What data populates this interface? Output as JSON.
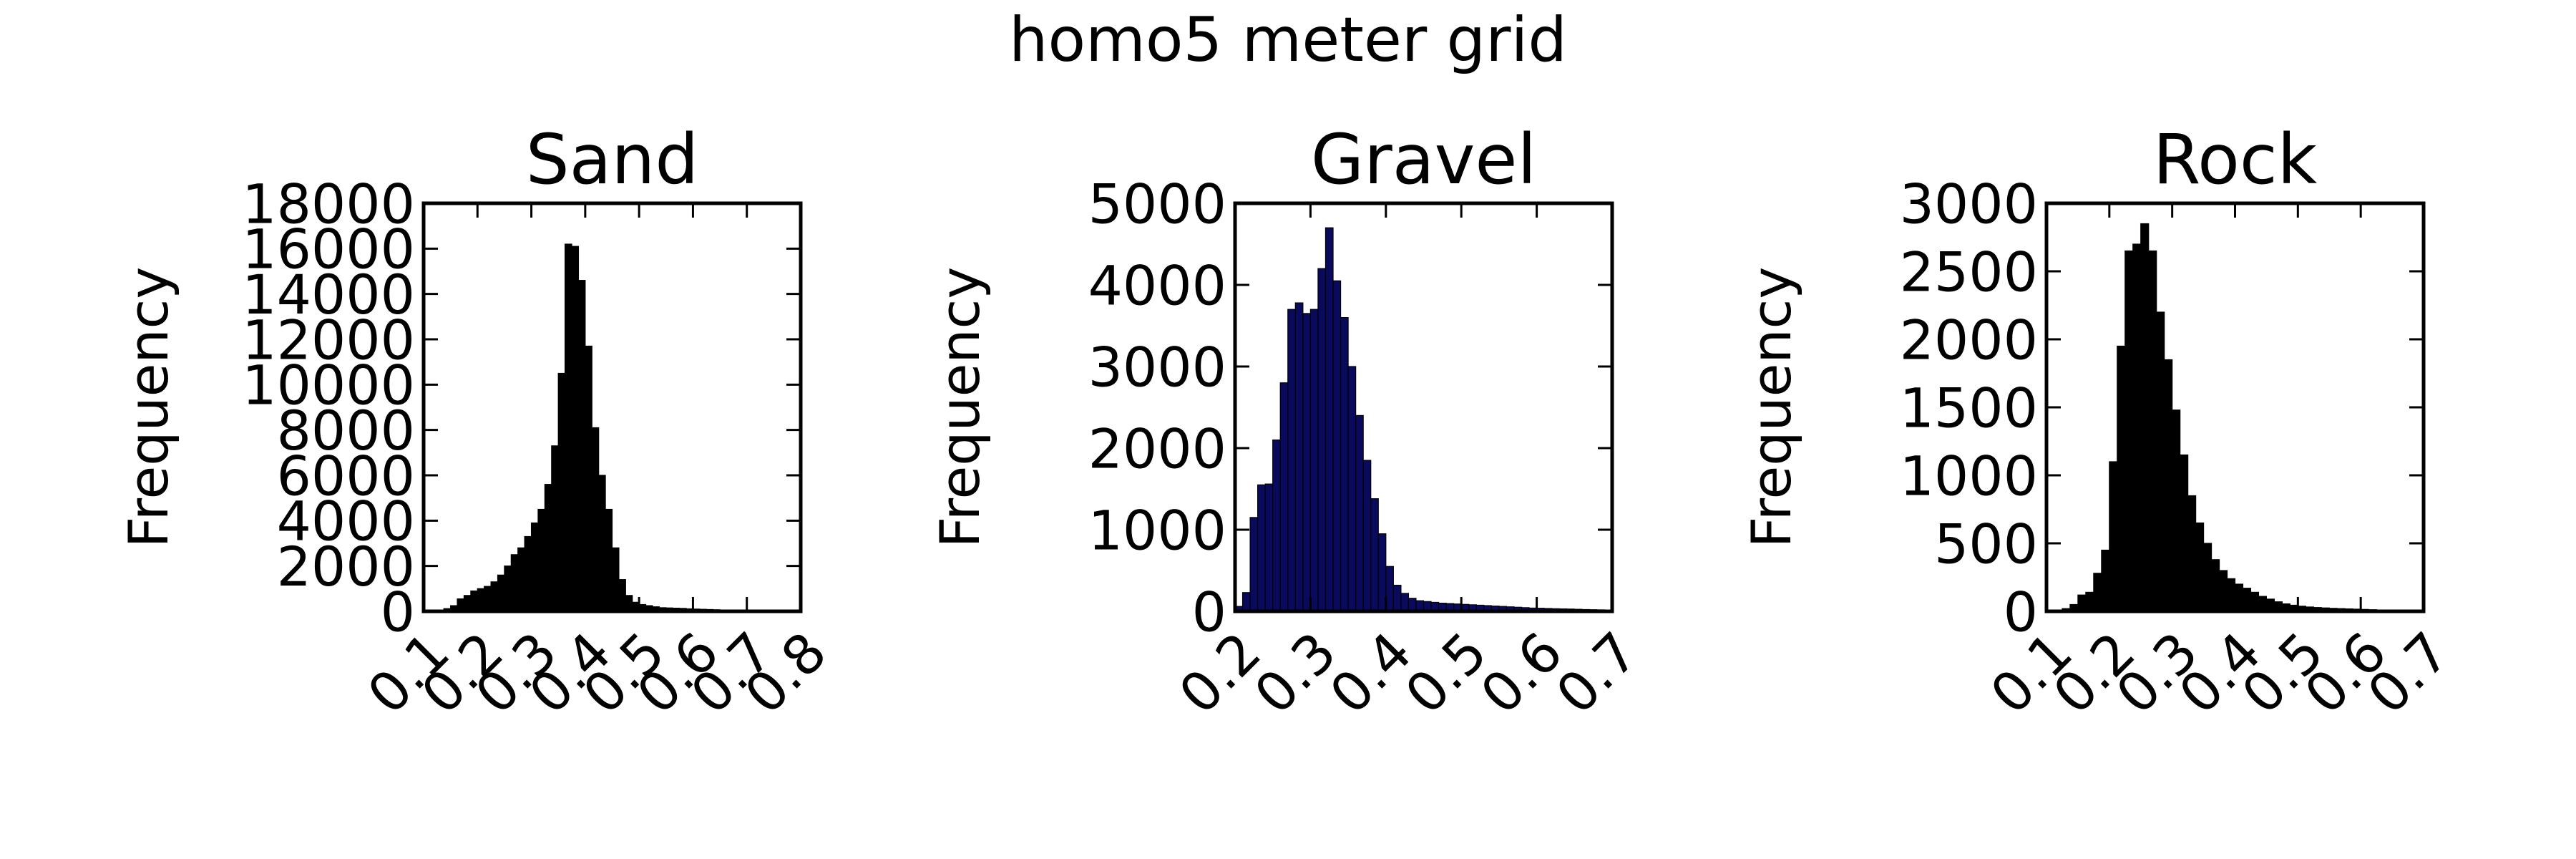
{
  "figure": {
    "suptitle": "homo5 meter grid"
  },
  "chart_data": [
    {
      "type": "bar",
      "title": "Sand",
      "xlabel": "",
      "ylabel": "Frequency",
      "xlim": [
        0.1,
        0.8
      ],
      "ylim": [
        0,
        18000
      ],
      "xticks": [
        0.1,
        0.2,
        0.3,
        0.4,
        0.5,
        0.6,
        0.7,
        0.8
      ],
      "xtick_labels": [
        "0.1",
        "0.2",
        "0.3",
        "0.4",
        "0.5",
        "0.6",
        "0.7",
        "0.8"
      ],
      "yticks": [
        0,
        2000,
        4000,
        6000,
        8000,
        10000,
        12000,
        14000,
        16000,
        18000
      ],
      "ytick_labels": [
        "0",
        "2000",
        "4000",
        "6000",
        "8000",
        "10000",
        "12000",
        "14000",
        "16000",
        "18000"
      ],
      "bin_start": 0.1,
      "bin_width": 0.0125,
      "values": [
        20,
        30,
        60,
        120,
        250,
        550,
        700,
        900,
        1000,
        1100,
        1300,
        1600,
        2000,
        2500,
        2800,
        3300,
        3900,
        4500,
        5600,
        7300,
        10500,
        16200,
        16100,
        14600,
        11700,
        8100,
        6000,
        4500,
        2800,
        1400,
        700,
        400,
        300,
        250,
        200,
        160,
        150,
        140,
        130,
        110,
        100,
        90,
        80,
        70,
        60,
        50,
        40,
        30,
        25,
        20,
        15,
        10,
        10,
        8,
        6,
        5
      ],
      "colors": {
        "bar": "#000000",
        "edge": "#000000"
      },
      "grid": false
    },
    {
      "type": "bar",
      "title": "Gravel",
      "xlabel": "",
      "ylabel": "Frequency",
      "xlim": [
        0.2,
        0.7
      ],
      "ylim": [
        0,
        5000
      ],
      "xticks": [
        0.2,
        0.3,
        0.4,
        0.5,
        0.6,
        0.7
      ],
      "xtick_labels": [
        "0.2",
        "0.3",
        "0.4",
        "0.5",
        "0.6",
        "0.7"
      ],
      "yticks": [
        0,
        1000,
        2000,
        3000,
        4000,
        5000
      ],
      "ytick_labels": [
        "0",
        "1000",
        "2000",
        "3000",
        "4000",
        "5000"
      ],
      "bin_start": 0.2,
      "bin_width": 0.01,
      "values": [
        60,
        230,
        1150,
        1550,
        1560,
        2100,
        2800,
        3700,
        3780,
        3650,
        3700,
        4200,
        4700,
        4050,
        3600,
        3000,
        2400,
        1850,
        1380,
        950,
        550,
        320,
        220,
        160,
        130,
        120,
        110,
        100,
        95,
        90,
        85,
        80,
        75,
        70,
        65,
        60,
        55,
        50,
        45,
        40,
        38,
        35,
        32,
        30,
        28,
        25,
        22,
        20,
        18,
        15
      ],
      "colors": {
        "bar": "#0a0a5c",
        "edge": "#000000"
      },
      "grid": false
    },
    {
      "type": "bar",
      "title": "Rock",
      "xlabel": "",
      "ylabel": "Frequency",
      "xlim": [
        0.1,
        0.7
      ],
      "ylim": [
        0,
        3000
      ],
      "xticks": [
        0.1,
        0.2,
        0.3,
        0.4,
        0.5,
        0.6,
        0.7
      ],
      "xtick_labels": [
        "0.1",
        "0.2",
        "0.3",
        "0.4",
        "0.5",
        "0.6",
        "0.7"
      ],
      "yticks": [
        0,
        500,
        1000,
        1500,
        2000,
        2500,
        3000
      ],
      "ytick_labels": [
        "0",
        "500",
        "1000",
        "1500",
        "2000",
        "2500",
        "3000"
      ],
      "bin_start": 0.1,
      "bin_width": 0.0125,
      "values": [
        5,
        10,
        20,
        50,
        120,
        140,
        280,
        450,
        1100,
        1950,
        2650,
        2700,
        2850,
        2650,
        2200,
        1850,
        1480,
        1150,
        850,
        650,
        500,
        380,
        300,
        240,
        200,
        170,
        140,
        110,
        90,
        70,
        55,
        45,
        38,
        32,
        28,
        25,
        22,
        20,
        18,
        16,
        14,
        12,
        10,
        8,
        6,
        5,
        4,
        3
      ],
      "colors": {
        "bar": "#000000",
        "edge": "#000000"
      },
      "grid": false
    }
  ]
}
